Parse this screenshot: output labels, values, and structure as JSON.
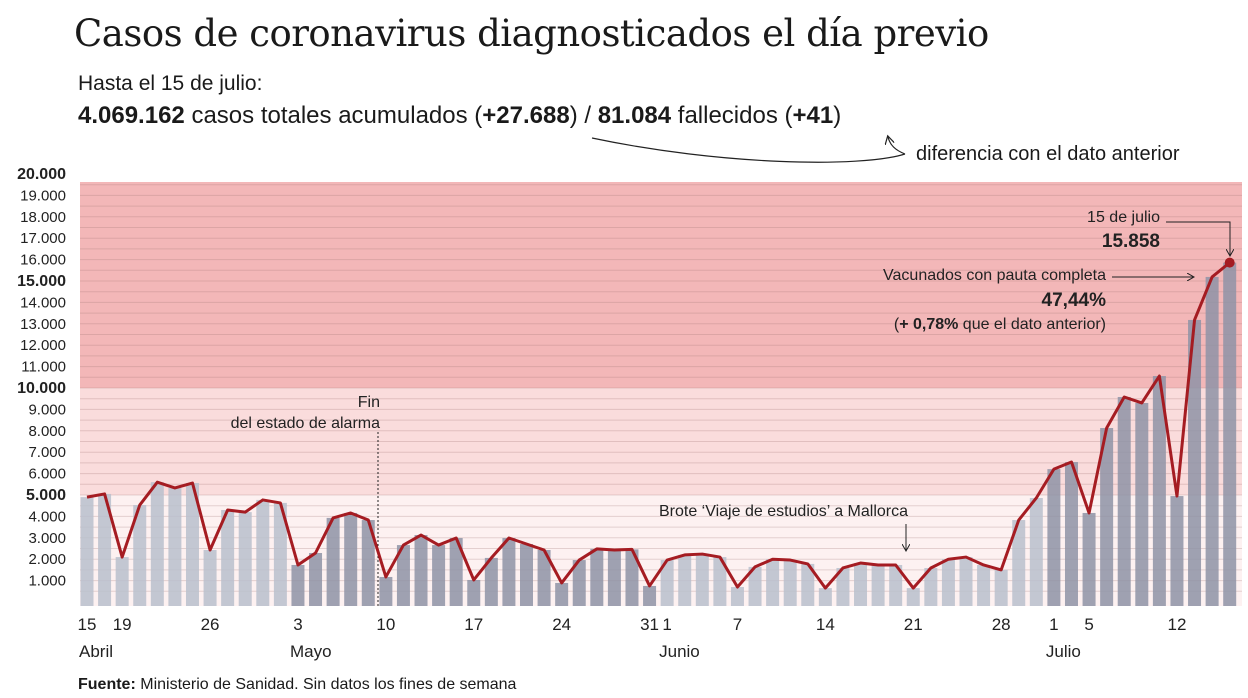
{
  "title": "Casos de coronavirus diagnosticados el día previo",
  "subtitle": "Hasta el 15 de julio:",
  "totals": {
    "cases": "4.069.162",
    "cases_label": "casos totales acumulados",
    "cases_diff": "+27.688",
    "deaths": "81.084",
    "deaths_label": "fallecidos",
    "deaths_diff": "+41"
  },
  "diff_note": "diferencia con el dato anterior",
  "footer": {
    "label": "Fuente:",
    "text": "Ministerio de Sanidad. Sin datos los fines de semana"
  },
  "colors": {
    "line": "#a51c22",
    "zone_high": "#f3b7b8",
    "zone_mid": "#fadcdc",
    "zone_low": "#fdf1f1",
    "bar_light": "#b9bfcc",
    "bar_dark": "#8e93a6"
  },
  "chart_data": {
    "type": "bar",
    "title": "Casos de coronavirus diagnosticados el día previo",
    "ylim": [
      0,
      20000
    ],
    "yticks": [
      "1.000",
      "2.000",
      "3.000",
      "4.000",
      "5.000",
      "6.000",
      "7.000",
      "8.000",
      "9.000",
      "10.000",
      "11.000",
      "12.000",
      "13.000",
      "14.000",
      "15.000",
      "16.000",
      "17.000",
      "18.000",
      "19.000",
      "20.000"
    ],
    "ytick_values": [
      1000,
      2000,
      3000,
      4000,
      5000,
      6000,
      7000,
      8000,
      9000,
      10000,
      11000,
      12000,
      13000,
      14000,
      15000,
      16000,
      17000,
      18000,
      19000,
      20000
    ],
    "bold_yticks": [
      5000,
      10000,
      15000,
      20000
    ],
    "zones": [
      5000,
      10000
    ],
    "dates": [
      "15/04",
      "16/04",
      "19/04",
      "20/04",
      "21/04",
      "22/04",
      "23/04",
      "26/04",
      "27/04",
      "28/04",
      "29/04",
      "30/04",
      "03/05",
      "04/05",
      "05/05",
      "06/05",
      "07/05",
      "10/05",
      "11/05",
      "12/05",
      "13/05",
      "14/05",
      "17/05",
      "18/05",
      "19/05",
      "20/05",
      "21/05",
      "24/05",
      "25/05",
      "26/05",
      "27/05",
      "28/05",
      "31/05",
      "01/06",
      "02/06",
      "03/06",
      "04/06",
      "07/06",
      "08/06",
      "09/06",
      "10/06",
      "11/06",
      "14/06",
      "15/06",
      "16/06",
      "17/06",
      "18/06",
      "21/06",
      "22/06",
      "23/06",
      "24/06",
      "25/06",
      "28/06",
      "29/06",
      "30/06",
      "01/07",
      "02/07",
      "05/07",
      "06/07",
      "07/07",
      "08/07",
      "09/07",
      "12/07",
      "13/07",
      "14/07",
      "15/07"
    ],
    "months": [
      "abr",
      "abr",
      "abr",
      "abr",
      "abr",
      "abr",
      "abr",
      "abr",
      "abr",
      "abr",
      "abr",
      "abr",
      "may",
      "may",
      "may",
      "may",
      "may",
      "may",
      "may",
      "may",
      "may",
      "may",
      "may",
      "may",
      "may",
      "may",
      "may",
      "may",
      "may",
      "may",
      "may",
      "may",
      "may",
      "jun",
      "jun",
      "jun",
      "jun",
      "jun",
      "jun",
      "jun",
      "jun",
      "jun",
      "jun",
      "jun",
      "jun",
      "jun",
      "jun",
      "jun",
      "jun",
      "jun",
      "jun",
      "jun",
      "jun",
      "jun",
      "jun",
      "jul",
      "jul",
      "jul",
      "jul",
      "jul",
      "jul",
      "jul",
      "jul",
      "jul",
      "jul",
      "jul"
    ],
    "values": [
      4900,
      5050,
      2100,
      4530,
      5600,
      5330,
      5560,
      2430,
      4300,
      4200,
      4770,
      4630,
      1730,
      2290,
      3930,
      4160,
      3830,
      1170,
      2660,
      3130,
      2660,
      2990,
      1030,
      2060,
      2990,
      2710,
      2430,
      890,
      1960,
      2480,
      2430,
      2460,
      750,
      1960,
      2200,
      2240,
      2100,
      700,
      1640,
      2000,
      1960,
      1780,
      650,
      1590,
      1820,
      1730,
      1730,
      650,
      1590,
      2000,
      2100,
      1730,
      1500,
      3830,
      4860,
      6210,
      6540,
      4160,
      8130,
      9580,
      9300,
      10560,
      4950,
      13180,
      15190,
      15858
    ],
    "xticks": [
      {
        "i": 0,
        "label": "15"
      },
      {
        "i": 2,
        "label": "19"
      },
      {
        "i": 7,
        "label": "26"
      },
      {
        "i": 12,
        "label": "3"
      },
      {
        "i": 17,
        "label": "10"
      },
      {
        "i": 22,
        "label": "17"
      },
      {
        "i": 27,
        "label": "24"
      },
      {
        "i": 32,
        "label": "31"
      },
      {
        "i": 33,
        "label": "1"
      },
      {
        "i": 37,
        "label": "7"
      },
      {
        "i": 42,
        "label": "14"
      },
      {
        "i": 47,
        "label": "21"
      },
      {
        "i": 52,
        "label": "28"
      },
      {
        "i": 55,
        "label": "1"
      },
      {
        "i": 57,
        "label": "5"
      },
      {
        "i": 62,
        "label": "12"
      }
    ],
    "month_labels": [
      {
        "i": 0,
        "label": "Abril"
      },
      {
        "i": 12,
        "label": "Mayo"
      },
      {
        "i": 33,
        "label": "Junio"
      },
      {
        "i": 55,
        "label": "Julio"
      }
    ],
    "annotations": {
      "alarm_line1": "Fin",
      "alarm_line2": "del estado de alarma",
      "outbreak": "Brote ‘Viaje de estudios’ a Mallorca",
      "last_date": "15 de julio",
      "last_value": "15.858",
      "vacc_label": "Vacunados con pauta completa",
      "vacc_value": "47,44%",
      "vacc_diff_open": "(",
      "vacc_diff": "+ 0,78%",
      "vacc_diff_rest": " que el dato anterior)"
    }
  }
}
